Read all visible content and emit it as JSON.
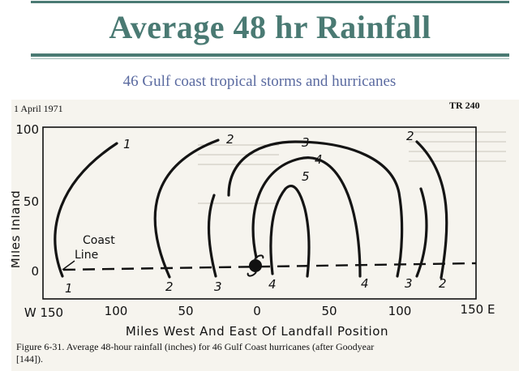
{
  "slide": {
    "title": "Average 48 hr Rainfall",
    "subtitle": "46 Gulf coast tropical storms and hurricanes"
  },
  "figure": {
    "date": "1 April 1971",
    "report_id": "TR 240",
    "y_axis_label": "Miles Inland",
    "x_axis_label": "Miles West And East Of Landfall Position",
    "y_ticks": [
      "100",
      "50",
      "0"
    ],
    "x_ticks": [
      "W 150",
      "100",
      "50",
      "0",
      "50",
      "100",
      "150 E"
    ],
    "coast_label_line1": "Coast",
    "coast_label_line2": "Line",
    "caption_line1": "Figure 6-31.  Average 48-hour rainfall (inches) for 46 Gulf Coast hurricanes (after Goodyear",
    "caption_line2": "[144]).",
    "isohyet_labels": {
      "west_1_top": "1",
      "west_1_bottom": "1",
      "west_2_top": "2",
      "west_2_bottom": "2",
      "west_3_bottom": "3",
      "center_3_top": "3",
      "center_4_top": "4",
      "center_5_top": "5",
      "center_4_bottom": "4",
      "east_4_bottom": "4",
      "east_3_bottom": "3",
      "east_2_top": "2",
      "east_2_bottom": "2"
    }
  }
}
